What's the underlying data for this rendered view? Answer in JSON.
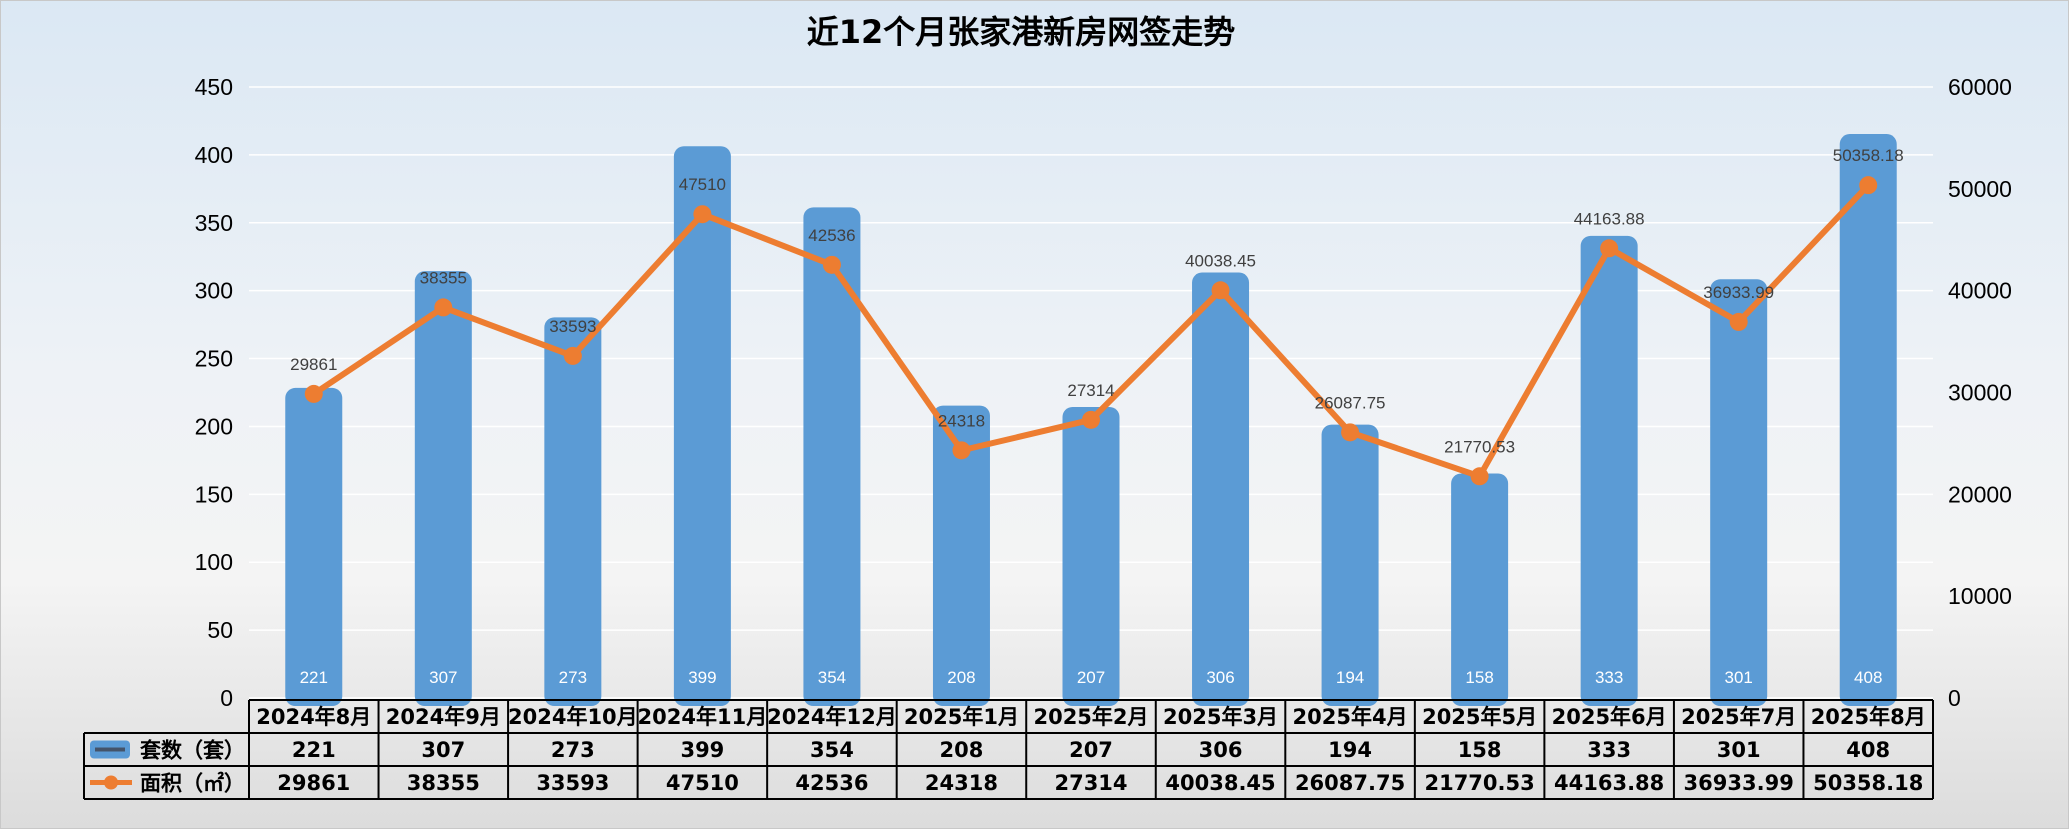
{
  "chart_data": {
    "type": "bar",
    "title": "近12个月张家港新房网签走势",
    "categories": [
      "2024年8月",
      "2024年9月",
      "2024年10月",
      "2024年11月",
      "2024年12月",
      "2025年1月",
      "2025年2月",
      "2025年3月",
      "2025年4月",
      "2025年5月",
      "2025年6月",
      "2025年7月",
      "2025年8月"
    ],
    "series": [
      {
        "name": "套数（套）",
        "type": "bar",
        "axis": "left",
        "color": "#5b9bd5",
        "values": [
          221,
          307,
          273,
          399,
          354,
          208,
          207,
          306,
          194,
          158,
          333,
          301,
          408
        ]
      },
      {
        "name": "面积（㎡）",
        "type": "line",
        "axis": "right",
        "color": "#ed7d31",
        "values": [
          29861,
          38355,
          33593,
          47510,
          42536,
          24318,
          27314,
          40038.45,
          26087.75,
          21770.53,
          44163.88,
          36933.99,
          50358.18
        ],
        "labels": [
          "29861",
          "38355",
          "33593",
          "47510",
          "42536",
          "24318",
          "27314",
          "40038.45",
          "26087.75",
          "21770.53",
          "44163.88",
          "36933.99",
          "50358.18"
        ]
      }
    ],
    "y_left": {
      "min": 0,
      "max": 450,
      "step": 50
    },
    "y_right": {
      "min": 0,
      "max": 60000,
      "step": 10000
    },
    "grid": true,
    "legend": "data-table"
  }
}
